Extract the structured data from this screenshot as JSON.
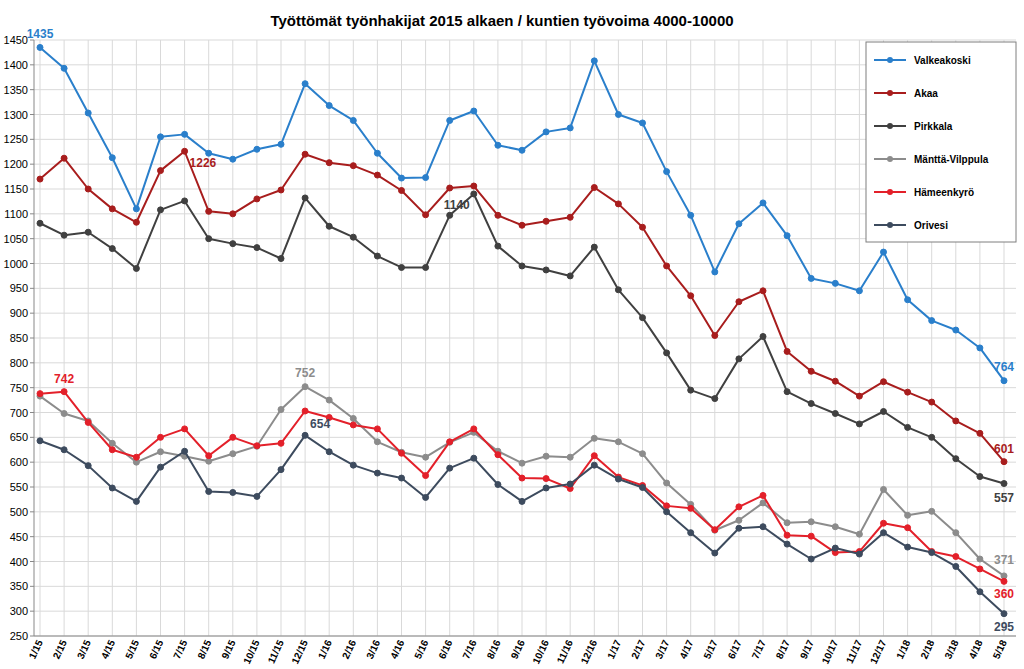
{
  "chart_data": {
    "type": "line",
    "title": "Työttömät työnhakijat 2015 alkaen / kuntien työvoima 4000-10000",
    "categories": [
      "1/15",
      "2/15",
      "3/15",
      "4/15",
      "5/15",
      "6/15",
      "7/15",
      "8/15",
      "9/15",
      "10/15",
      "11/15",
      "12/15",
      "1/16",
      "2/16",
      "3/16",
      "4/16",
      "5/16",
      "6/16",
      "7/16",
      "8/16",
      "9/16",
      "10/16",
      "11/16",
      "12/16",
      "1/17",
      "2/17",
      "3/17",
      "4/17",
      "5/17",
      "6/17",
      "7/17",
      "8/17",
      "9/17",
      "10/17",
      "11/17",
      "12/17",
      "1/18",
      "2/18",
      "3/18",
      "4/18",
      "5/18"
    ],
    "series": [
      {
        "name": "Valkeakoski",
        "color": "#2a7fcb",
        "marker": "circle",
        "values": [
          1435,
          1393,
          1303,
          1213,
          1110,
          1255,
          1260,
          1222,
          1210,
          1230,
          1240,
          1362,
          1318,
          1288,
          1222,
          1172,
          1173,
          1288,
          1307,
          1238,
          1228,
          1265,
          1273,
          1408,
          1300,
          1283,
          1185,
          1097,
          983,
          1080,
          1122,
          1056,
          970,
          960,
          945,
          1023,
          927,
          885,
          866,
          830,
          764
        ]
      },
      {
        "name": "Akaa",
        "color": "#a81d1d",
        "marker": "circle",
        "values": [
          1170,
          1212,
          1150,
          1110,
          1083,
          1187,
          1226,
          1105,
          1100,
          1130,
          1148,
          1220,
          1203,
          1197,
          1178,
          1147,
          1098,
          1152,
          1156,
          1097,
          1077,
          1085,
          1093,
          1153,
          1120,
          1073,
          995,
          935,
          855,
          923,
          945,
          823,
          783,
          763,
          733,
          762,
          741,
          721,
          683,
          658,
          601
        ]
      },
      {
        "name": "Pirkkala",
        "color": "#404040",
        "marker": "circle",
        "values": [
          1081,
          1057,
          1063,
          1030,
          990,
          1108,
          1126,
          1050,
          1040,
          1032,
          1010,
          1132,
          1075,
          1053,
          1015,
          992,
          992,
          1097,
          1140,
          1035,
          995,
          987,
          975,
          1033,
          947,
          891,
          820,
          745,
          728,
          808,
          853,
          742,
          718,
          698,
          677,
          702,
          670,
          650,
          607,
          571,
          557
        ]
      },
      {
        "name": "Mänttä-Vilppula",
        "color": "#8c8c8c",
        "marker": "circle",
        "values": [
          733,
          698,
          683,
          638,
          600,
          621,
          612,
          602,
          617,
          632,
          706,
          752,
          725,
          688,
          641,
          620,
          610,
          640,
          660,
          622,
          598,
          612,
          610,
          648,
          641,
          617,
          558,
          515,
          463,
          483,
          518,
          478,
          480,
          470,
          455,
          545,
          493,
          501,
          458,
          405,
          371
        ]
      },
      {
        "name": "Hämeenkyrö",
        "color": "#e3202a",
        "marker": "circle",
        "values": [
          738,
          742,
          680,
          625,
          610,
          650,
          667,
          613,
          650,
          633,
          638,
          703,
          690,
          675,
          667,
          618,
          573,
          641,
          667,
          615,
          568,
          567,
          547,
          613,
          570,
          553,
          512,
          507,
          464,
          510,
          533,
          453,
          451,
          418,
          420,
          477,
          468,
          420,
          410,
          385,
          360
        ]
      },
      {
        "name": "Orivesi",
        "color": "#3d4b5e",
        "marker": "circle",
        "values": [
          643,
          625,
          593,
          548,
          521,
          590,
          622,
          541,
          539,
          531,
          585,
          654,
          621,
          594,
          578,
          568,
          529,
          588,
          608,
          555,
          521,
          548,
          556,
          594,
          566,
          549,
          500,
          458,
          417,
          467,
          470,
          435,
          405,
          427,
          415,
          458,
          429,
          418,
          390,
          339,
          295
        ]
      }
    ],
    "ylim": [
      250,
      1450
    ],
    "yticks": [
      250,
      300,
      350,
      400,
      450,
      500,
      550,
      600,
      650,
      700,
      750,
      800,
      850,
      900,
      950,
      1000,
      1050,
      1100,
      1150,
      1200,
      1250,
      1300,
      1350,
      1400,
      1450
    ],
    "grid": true,
    "legend": "top-right",
    "annotations": [
      {
        "series": "Valkeakoski",
        "x": "1/15",
        "text": "1435"
      },
      {
        "series": "Akaa",
        "x": "7/15",
        "text": "1226"
      },
      {
        "series": "Hämeenkyrö",
        "x": "2/15",
        "text": "742"
      },
      {
        "series": "Mänttä-Vilppula",
        "x": "12/15",
        "text": "752"
      },
      {
        "series": "Orivesi",
        "x": "12/15",
        "text": "654"
      },
      {
        "series": "Pirkkala",
        "x": "7/16",
        "text": "1140"
      },
      {
        "series": "Valkeakoski",
        "x": "5/18",
        "text": "764"
      },
      {
        "series": "Akaa",
        "x": "5/18",
        "text": "601"
      },
      {
        "series": "Pirkkala",
        "x": "5/18",
        "text": "557"
      },
      {
        "series": "Mänttä-Vilppula",
        "x": "5/18",
        "text": "371"
      },
      {
        "series": "Hämeenkyrö",
        "x": "5/18",
        "text": "360"
      },
      {
        "series": "Orivesi",
        "x": "5/18",
        "text": "295"
      }
    ]
  }
}
